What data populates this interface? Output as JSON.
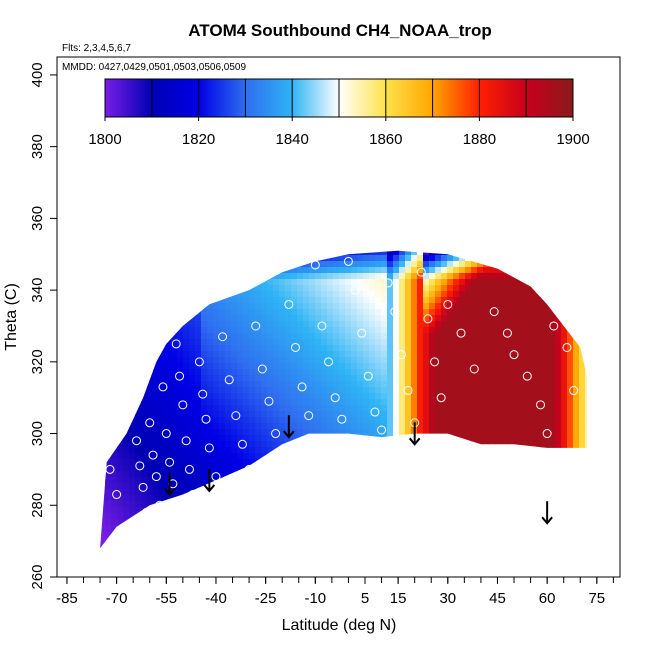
{
  "chart_data": {
    "type": "heatmap",
    "title": "ATOM4 Southbound CH4_NOAA_trop",
    "notes": {
      "flights": "Flts: 2,3,4,5,6,7",
      "dates": "MMDD: 0427,0429,0501,0503,0506,0509"
    },
    "xlabel": "Latitude (deg N)",
    "ylabel": "Theta (C)",
    "xlim": [
      -88,
      82
    ],
    "ylim": [
      260,
      405
    ],
    "x_ticks": [
      -85,
      -70,
      -55,
      -40,
      -25,
      -10,
      5,
      15,
      30,
      45,
      60,
      75
    ],
    "y_ticks": [
      260,
      280,
      300,
      320,
      340,
      360,
      380,
      400
    ],
    "colorbar": {
      "min": 1800,
      "max": 1900,
      "ticks": [
        1800,
        1820,
        1840,
        1860,
        1880,
        1900
      ],
      "colors": [
        "#7a1ee6",
        "#0000b4",
        "#0000e6",
        "#2f6ef0",
        "#2fb4f5",
        "#ffffff",
        "#ffe24a",
        "#ffa500",
        "#ff2000",
        "#c8001e",
        "#8b1a1a"
      ]
    },
    "field_shape": {
      "top_boundary": [
        [
          -73,
          292
        ],
        [
          -67,
          300
        ],
        [
          -62,
          310
        ],
        [
          -58,
          320
        ],
        [
          -55,
          325
        ],
        [
          -50,
          330
        ],
        [
          -42,
          336
        ],
        [
          -30,
          340
        ],
        [
          -20,
          345
        ],
        [
          -10,
          348
        ],
        [
          0,
          350
        ],
        [
          15,
          351
        ],
        [
          30,
          350
        ],
        [
          45,
          346
        ],
        [
          55,
          341
        ],
        [
          60,
          336
        ],
        [
          65,
          330
        ],
        [
          70,
          324
        ],
        [
          72,
          316
        ],
        [
          72,
          296
        ]
      ],
      "bottom_boundary": [
        [
          -75,
          268
        ],
        [
          -70,
          274
        ],
        [
          -60,
          280
        ],
        [
          -50,
          283
        ],
        [
          -40,
          287
        ],
        [
          -30,
          291
        ],
        [
          -20,
          297
        ],
        [
          -12,
          300
        ],
        [
          0,
          300
        ],
        [
          10,
          299
        ],
        [
          20,
          300
        ],
        [
          30,
          300
        ],
        [
          40,
          297
        ],
        [
          50,
          297
        ],
        [
          60,
          296
        ],
        [
          72,
          296
        ]
      ]
    },
    "sample_points": [
      [
        -72,
        296
      ],
      [
        -72,
        290
      ],
      [
        -70,
        283
      ],
      [
        -66,
        305
      ],
      [
        -64,
        298
      ],
      [
        -63,
        291
      ],
      [
        -62,
        285
      ],
      [
        -61,
        278
      ],
      [
        -60,
        303
      ],
      [
        -59,
        294
      ],
      [
        -58,
        288
      ],
      [
        -57,
        280
      ],
      [
        -56,
        313
      ],
      [
        -55,
        300
      ],
      [
        -54,
        292
      ],
      [
        -53,
        286
      ],
      [
        -52,
        325
      ],
      [
        -51,
        316
      ],
      [
        -50,
        308
      ],
      [
        -49,
        298
      ],
      [
        -48,
        290
      ],
      [
        -47,
        283
      ],
      [
        -45,
        320
      ],
      [
        -44,
        311
      ],
      [
        -43,
        304
      ],
      [
        -42,
        296
      ],
      [
        -40,
        288
      ],
      [
        -38,
        327
      ],
      [
        -36,
        315
      ],
      [
        -34,
        305
      ],
      [
        -32,
        297
      ],
      [
        -30,
        290
      ],
      [
        -28,
        330
      ],
      [
        -26,
        318
      ],
      [
        -24,
        309
      ],
      [
        -22,
        300
      ],
      [
        -20,
        294
      ],
      [
        -18,
        336
      ],
      [
        -16,
        324
      ],
      [
        -14,
        313
      ],
      [
        -12,
        305
      ],
      [
        -10,
        347
      ],
      [
        -8,
        330
      ],
      [
        -6,
        320
      ],
      [
        -4,
        310
      ],
      [
        -2,
        304
      ],
      [
        0,
        348
      ],
      [
        2,
        340
      ],
      [
        4,
        328
      ],
      [
        6,
        316
      ],
      [
        8,
        306
      ],
      [
        10,
        301
      ],
      [
        12,
        342
      ],
      [
        14,
        334
      ],
      [
        16,
        322
      ],
      [
        18,
        312
      ],
      [
        20,
        303
      ],
      [
        22,
        345
      ],
      [
        24,
        332
      ],
      [
        26,
        320
      ],
      [
        28,
        310
      ],
      [
        30,
        336
      ],
      [
        34,
        328
      ],
      [
        38,
        318
      ],
      [
        44,
        334
      ],
      [
        48,
        328
      ],
      [
        50,
        322
      ],
      [
        54,
        316
      ],
      [
        58,
        308
      ],
      [
        60,
        300
      ],
      [
        62,
        330
      ],
      [
        66,
        324
      ],
      [
        68,
        312
      ]
    ],
    "arrows": [
      {
        "lat": -54,
        "theta": 283
      },
      {
        "lat": -42,
        "theta": 284
      },
      {
        "lat": -18,
        "theta": 299
      },
      {
        "lat": 20,
        "theta": 297
      },
      {
        "lat": 60,
        "theta": 275
      }
    ],
    "grid": false,
    "legend": "colorbar top"
  }
}
